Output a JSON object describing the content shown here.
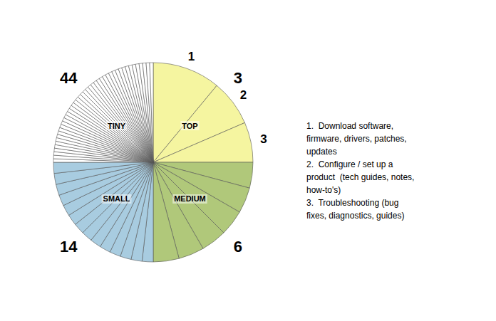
{
  "chart_data": {
    "type": "pie",
    "values": [
      11.0,
      7.5,
      6.5,
      4.166666666666667,
      4.166666666666667,
      4.166666666666667,
      4.166666666666667,
      4.166666666666667,
      4.166666666666667,
      1.7857142857142858,
      1.7857142857142858,
      1.7857142857142858,
      1.7857142857142858,
      1.7857142857142858,
      1.7857142857142858,
      1.7857142857142858,
      1.7857142857142858,
      1.7857142857142858,
      1.7857142857142858,
      1.7857142857142858,
      1.7857142857142858,
      1.7857142857142858,
      1.7857142857142858,
      0.5681818181818182,
      0.5681818181818182,
      0.5681818181818182,
      0.5681818181818182,
      0.5681818181818182,
      0.5681818181818182,
      0.5681818181818182,
      0.5681818181818182,
      0.5681818181818182,
      0.5681818181818182,
      0.5681818181818182,
      0.5681818181818182,
      0.5681818181818182,
      0.5681818181818182,
      0.5681818181818182,
      0.5681818181818182,
      0.5681818181818182,
      0.5681818181818182,
      0.5681818181818182,
      0.5681818181818182,
      0.5681818181818182,
      0.5681818181818182,
      0.5681818181818182,
      0.5681818181818182,
      0.5681818181818182,
      0.5681818181818182,
      0.5681818181818182,
      0.5681818181818182,
      0.5681818181818182,
      0.5681818181818182,
      0.5681818181818182,
      0.5681818181818182,
      0.5681818181818182,
      0.5681818181818182,
      0.5681818181818182,
      0.5681818181818182,
      0.5681818181818182,
      0.5681818181818182,
      0.5681818181818182,
      0.5681818181818182,
      0.5681818181818182,
      0.5681818181818182,
      0.5681818181818182,
      0.5681818181818182
    ],
    "colors": [
      "#f5f5a0",
      "#f5f5a0",
      "#f5f5a0",
      "#b0c87a",
      "#b0c87a",
      "#b0c87a",
      "#b0c87a",
      "#b0c87a",
      "#b0c87a",
      "#a8cce0",
      "#a8cce0",
      "#a8cce0",
      "#a8cce0",
      "#a8cce0",
      "#a8cce0",
      "#a8cce0",
      "#a8cce0",
      "#a8cce0",
      "#a8cce0",
      "#a8cce0",
      "#a8cce0",
      "#a8cce0",
      "#a8cce0",
      "#ffffff",
      "#ffffff",
      "#ffffff",
      "#ffffff",
      "#ffffff",
      "#ffffff",
      "#ffffff",
      "#ffffff",
      "#ffffff",
      "#ffffff",
      "#ffffff",
      "#ffffff",
      "#ffffff",
      "#ffffff",
      "#ffffff",
      "#ffffff",
      "#ffffff",
      "#ffffff",
      "#ffffff",
      "#ffffff",
      "#ffffff",
      "#ffffff",
      "#ffffff",
      "#ffffff",
      "#ffffff",
      "#ffffff",
      "#ffffff",
      "#ffffff",
      "#ffffff",
      "#ffffff",
      "#ffffff",
      "#ffffff",
      "#ffffff",
      "#ffffff",
      "#ffffff",
      "#ffffff",
      "#ffffff",
      "#ffffff",
      "#ffffff",
      "#ffffff",
      "#ffffff",
      "#ffffff",
      "#ffffff",
      "#ffffff"
    ],
    "categories": [
      "1",
      "2",
      "3",
      null,
      null,
      null,
      null,
      null,
      null,
      null,
      null,
      null,
      null,
      null,
      null,
      null,
      null,
      null,
      null,
      null,
      null,
      null,
      null,
      null,
      null,
      null,
      null,
      null,
      null,
      null,
      null,
      null,
      null,
      null,
      null,
      null,
      null,
      null,
      null,
      null,
      null,
      null,
      null,
      null,
      null,
      null,
      null,
      null,
      null,
      null,
      null,
      null,
      null,
      null,
      null,
      null,
      null,
      null,
      null,
      null,
      null,
      null,
      null,
      null,
      null,
      null,
      null
    ],
    "groups": [
      {
        "name": "TOP",
        "count": 3
      },
      {
        "name": "MEDIUM",
        "count": 6
      },
      {
        "name": "SMALL",
        "count": 14
      },
      {
        "name": "TINY",
        "count": 44
      }
    ],
    "annotation": "1.  Download software,\nfirmware, drivers, patches,\nupdates\n2.  Configure / set up a\nproduct  (tech guides, notes,\nhow-to's)\n3.  Troubleshooting (bug\nfixes, diagnostics, guides)"
  }
}
